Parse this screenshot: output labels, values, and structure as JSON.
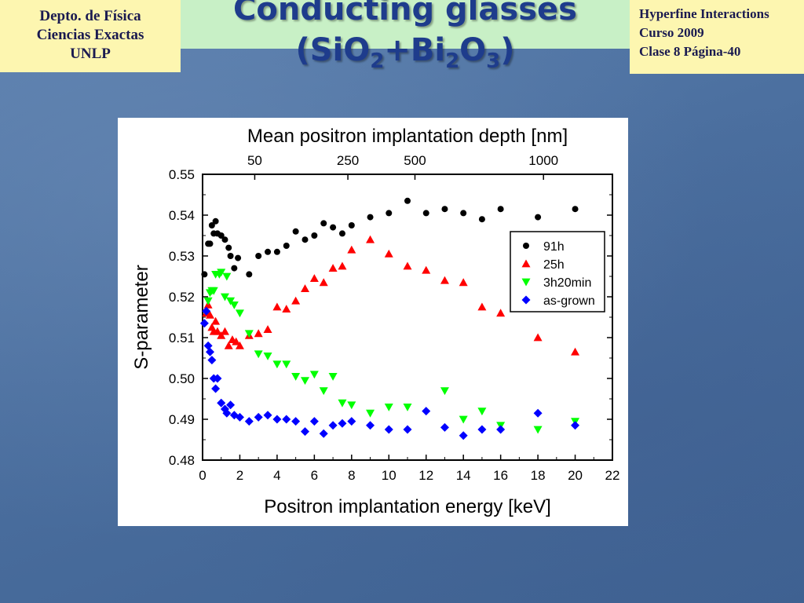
{
  "header": {
    "left_box": [
      "Depto. de Física",
      "Ciencias Exactas",
      "UNLP"
    ],
    "right_box": [
      "Hyperfine Interactions",
      "Curso 2009",
      "Clase 8  Página-40"
    ],
    "title_line1": "Conducting glasses",
    "title_line2": {
      "pre": "(SiO",
      "sub1": "2",
      "mid": "+Bi",
      "sub2": "2",
      "post": "O",
      "sub3": "3",
      "end": ")"
    }
  },
  "colors": {
    "title": "#1e3c8c",
    "box_bg": "#fdf6b0",
    "band_bg": "#c8f0c6"
  },
  "chart_data": {
    "type": "scatter",
    "xlabel": "Positron implantation energy [keV]",
    "ylabel": "S-parameter",
    "top_axis_label": "Mean positron implantation depth [nm]",
    "top_ticks": [
      {
        "label": "50",
        "energy": 2.8
      },
      {
        "label": "250",
        "energy": 7.8
      },
      {
        "label": "500",
        "energy": 11.4
      },
      {
        "label": "1000",
        "energy": 18.3
      }
    ],
    "xlim": [
      0,
      22
    ],
    "ylim": [
      0.48,
      0.55
    ],
    "xticks": [
      0,
      2,
      4,
      6,
      8,
      10,
      12,
      14,
      16,
      18,
      20,
      22
    ],
    "yticks": [
      "0.48",
      "0.49",
      "0.50",
      "0.51",
      "0.52",
      "0.53",
      "0.54",
      "0.55"
    ],
    "legend_position": "upper-right",
    "series": [
      {
        "name": "91h",
        "marker": "circle",
        "color": "#000000",
        "points": [
          [
            0.1,
            0.5255
          ],
          [
            0.3,
            0.533
          ],
          [
            0.4,
            0.533
          ],
          [
            0.5,
            0.5375
          ],
          [
            0.6,
            0.5355
          ],
          [
            0.7,
            0.5385
          ],
          [
            0.8,
            0.5355
          ],
          [
            1.0,
            0.535
          ],
          [
            1.2,
            0.534
          ],
          [
            1.4,
            0.532
          ],
          [
            1.5,
            0.53
          ],
          [
            1.7,
            0.527
          ],
          [
            1.9,
            0.5295
          ],
          [
            2.5,
            0.5255
          ],
          [
            3.0,
            0.53
          ],
          [
            3.5,
            0.531
          ],
          [
            4.0,
            0.531
          ],
          [
            4.5,
            0.5325
          ],
          [
            5.0,
            0.536
          ],
          [
            5.5,
            0.534
          ],
          [
            6.0,
            0.535
          ],
          [
            6.5,
            0.538
          ],
          [
            7.0,
            0.537
          ],
          [
            7.5,
            0.5355
          ],
          [
            8.0,
            0.5375
          ],
          [
            9.0,
            0.5395
          ],
          [
            10.0,
            0.5405
          ],
          [
            11.0,
            0.5435
          ],
          [
            12.0,
            0.5405
          ],
          [
            13.0,
            0.5415
          ],
          [
            14.0,
            0.5405
          ],
          [
            15.0,
            0.539
          ],
          [
            16.0,
            0.5415
          ],
          [
            18.0,
            0.5395
          ],
          [
            20.0,
            0.5415
          ]
        ]
      },
      {
        "name": "25h",
        "marker": "triangle-up",
        "color": "#ff0000",
        "points": [
          [
            0.2,
            0.516
          ],
          [
            0.3,
            0.518
          ],
          [
            0.4,
            0.5155
          ],
          [
            0.5,
            0.5125
          ],
          [
            0.6,
            0.5115
          ],
          [
            0.7,
            0.514
          ],
          [
            0.8,
            0.5115
          ],
          [
            1.0,
            0.5105
          ],
          [
            1.2,
            0.5115
          ],
          [
            1.4,
            0.508
          ],
          [
            1.6,
            0.5095
          ],
          [
            1.8,
            0.509
          ],
          [
            2.0,
            0.508
          ],
          [
            2.5,
            0.5105
          ],
          [
            3.0,
            0.511
          ],
          [
            3.5,
            0.512
          ],
          [
            4.0,
            0.5175
          ],
          [
            4.5,
            0.517
          ],
          [
            5.0,
            0.519
          ],
          [
            5.5,
            0.522
          ],
          [
            6.0,
            0.5245
          ],
          [
            6.5,
            0.5235
          ],
          [
            7.0,
            0.527
          ],
          [
            7.5,
            0.5275
          ],
          [
            8.0,
            0.5315
          ],
          [
            9.0,
            0.534
          ],
          [
            10.0,
            0.5305
          ],
          [
            11.0,
            0.5275
          ],
          [
            12.0,
            0.5265
          ],
          [
            13.0,
            0.524
          ],
          [
            14.0,
            0.5235
          ],
          [
            15.0,
            0.5175
          ],
          [
            16.0,
            0.516
          ],
          [
            18.0,
            0.51
          ],
          [
            20.0,
            0.5065
          ]
        ]
      },
      {
        "name": "3h20min",
        "marker": "triangle-down",
        "color": "#00ff00",
        "points": [
          [
            0.3,
            0.519
          ],
          [
            0.4,
            0.521
          ],
          [
            0.5,
            0.5215
          ],
          [
            0.6,
            0.5215
          ],
          [
            0.7,
            0.5255
          ],
          [
            0.9,
            0.5255
          ],
          [
            1.0,
            0.526
          ],
          [
            1.3,
            0.525
          ],
          [
            1.2,
            0.52
          ],
          [
            1.5,
            0.519
          ],
          [
            1.7,
            0.518
          ],
          [
            2.0,
            0.516
          ],
          [
            2.5,
            0.511
          ],
          [
            3.0,
            0.506
          ],
          [
            3.5,
            0.5055
          ],
          [
            4.0,
            0.5035
          ],
          [
            4.5,
            0.5035
          ],
          [
            5.0,
            0.5005
          ],
          [
            5.5,
            0.4995
          ],
          [
            6.0,
            0.501
          ],
          [
            6.5,
            0.497
          ],
          [
            7.0,
            0.5005
          ],
          [
            7.5,
            0.494
          ],
          [
            8.0,
            0.4935
          ],
          [
            9.0,
            0.4915
          ],
          [
            10.0,
            0.493
          ],
          [
            11.0,
            0.493
          ],
          [
            13.0,
            0.497
          ],
          [
            14.0,
            0.49
          ],
          [
            15.0,
            0.492
          ],
          [
            16.0,
            0.4885
          ],
          [
            18.0,
            0.4875
          ],
          [
            20.0,
            0.4895
          ]
        ]
      },
      {
        "name": "as-grown",
        "marker": "diamond",
        "color": "#0000ff",
        "points": [
          [
            0.1,
            0.5135
          ],
          [
            0.2,
            0.5165
          ],
          [
            0.3,
            0.508
          ],
          [
            0.4,
            0.5065
          ],
          [
            0.5,
            0.5045
          ],
          [
            0.6,
            0.5
          ],
          [
            0.7,
            0.4975
          ],
          [
            0.8,
            0.5
          ],
          [
            1.0,
            0.494
          ],
          [
            1.2,
            0.4925
          ],
          [
            1.3,
            0.4915
          ],
          [
            1.5,
            0.4935
          ],
          [
            1.7,
            0.491
          ],
          [
            2.0,
            0.4905
          ],
          [
            2.5,
            0.4895
          ],
          [
            3.0,
            0.4905
          ],
          [
            3.5,
            0.491
          ],
          [
            4.0,
            0.49
          ],
          [
            4.5,
            0.49
          ],
          [
            5.0,
            0.4895
          ],
          [
            5.5,
            0.487
          ],
          [
            6.0,
            0.4895
          ],
          [
            6.5,
            0.4865
          ],
          [
            7.0,
            0.4885
          ],
          [
            7.5,
            0.489
          ],
          [
            8.0,
            0.4895
          ],
          [
            9.0,
            0.4885
          ],
          [
            10.0,
            0.4875
          ],
          [
            11.0,
            0.4875
          ],
          [
            12.0,
            0.492
          ],
          [
            13.0,
            0.488
          ],
          [
            14.0,
            0.486
          ],
          [
            15.0,
            0.4875
          ],
          [
            16.0,
            0.4875
          ],
          [
            18.0,
            0.4915
          ],
          [
            20.0,
            0.4885
          ]
        ]
      }
    ]
  }
}
